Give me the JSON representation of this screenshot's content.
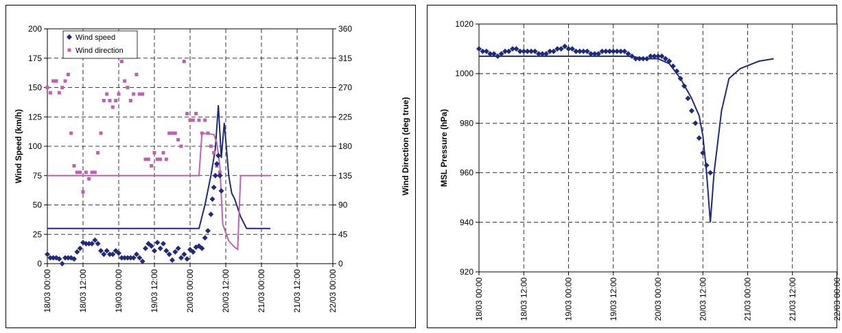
{
  "chart_data": [
    {
      "type": "line",
      "ylabel": "Wind Speed (km/h)",
      "y2label": "Wind Direction (deg true)",
      "ylim": [
        0,
        200
      ],
      "y2lim": [
        0,
        360
      ],
      "y_ticks": [
        "0",
        "25",
        "50",
        "75",
        "100",
        "125",
        "150",
        "175",
        "200"
      ],
      "y2_ticks": [
        "0",
        "45",
        "90",
        "135",
        "180",
        "225",
        "270",
        "315",
        "360"
      ],
      "x_ticks": [
        "18/03 00:00",
        "18/03 12:00",
        "19/03 00:00",
        "19/03 12:00",
        "20/03 00:00",
        "20/03 12:00",
        "21/03 00:00",
        "21/03 12:00",
        "22/03 00:00"
      ],
      "x_unit": "hours since 18/03 00:00",
      "xlim": [
        0,
        96
      ],
      "grid": true,
      "legend": {
        "placement": "top-left",
        "entries": [
          "Wind speed",
          "Wind direction"
        ]
      },
      "colors": {
        "speed": "#1f2a7a",
        "direction": "#c060b0"
      },
      "series": [
        {
          "name": "Wind speed",
          "axis": "left",
          "observed": [
            [
              0,
              8
            ],
            [
              1,
              5
            ],
            [
              2,
              5
            ],
            [
              3,
              5
            ],
            [
              4,
              4
            ],
            [
              5,
              0
            ],
            [
              6,
              5
            ],
            [
              7,
              5
            ],
            [
              8,
              5
            ],
            [
              9,
              4
            ],
            [
              10,
              10
            ],
            [
              11,
              13
            ],
            [
              12,
              18
            ],
            [
              13,
              17
            ],
            [
              14,
              17
            ],
            [
              15,
              17
            ],
            [
              16,
              20
            ],
            [
              17,
              17
            ],
            [
              18,
              11
            ],
            [
              19,
              8
            ],
            [
              20,
              11
            ],
            [
              21,
              8
            ],
            [
              22,
              8
            ],
            [
              23,
              11
            ],
            [
              24,
              9
            ],
            [
              25,
              5
            ],
            [
              26,
              5
            ],
            [
              27,
              5
            ],
            [
              28,
              5
            ],
            [
              29,
              5
            ],
            [
              30,
              8
            ],
            [
              31,
              5
            ],
            [
              32,
              2
            ],
            [
              33,
              13
            ],
            [
              34,
              17
            ],
            [
              35,
              15
            ],
            [
              36,
              11
            ],
            [
              37,
              18
            ],
            [
              38,
              13
            ],
            [
              39,
              17
            ],
            [
              40,
              11
            ],
            [
              41,
              8
            ],
            [
              42,
              3
            ],
            [
              43,
              10
            ],
            [
              44,
              13
            ],
            [
              45,
              5
            ],
            [
              46,
              8
            ],
            [
              47,
              4
            ],
            [
              48,
              12
            ],
            [
              49,
              10
            ],
            [
              50,
              14
            ],
            [
              51,
              15
            ],
            [
              52,
              13
            ],
            [
              53,
              22
            ],
            [
              54,
              28
            ],
            [
              55,
              42
            ],
            [
              55.5,
              55
            ],
            [
              56,
              65
            ],
            [
              56.5,
              75
            ],
            [
              57,
              85
            ],
            [
              57.5,
              92
            ],
            [
              58,
              75
            ],
            [
              58.5,
              62
            ]
          ],
          "model": [
            [
              0,
              30
            ],
            [
              51,
              30
            ],
            [
              53,
              50
            ],
            [
              55,
              75
            ],
            [
              56.5,
              98
            ],
            [
              57.5,
              135
            ],
            [
              58.5,
              90
            ],
            [
              59.5,
              120
            ],
            [
              61,
              75
            ],
            [
              62,
              60
            ],
            [
              63,
              55
            ],
            [
              65,
              40
            ],
            [
              67,
              30
            ],
            [
              75,
              30
            ]
          ]
        },
        {
          "name": "Wind direction",
          "axis": "right",
          "observed": [
            [
              0,
              270
            ],
            [
              1,
              262
            ],
            [
              2,
              280
            ],
            [
              3,
              280
            ],
            [
              4,
              262
            ],
            [
              5,
              270
            ],
            [
              6,
              280
            ],
            [
              7,
              290
            ],
            [
              8,
              200
            ],
            [
              9,
              150
            ],
            [
              10,
              140
            ],
            [
              11,
              140
            ],
            [
              12,
              110
            ],
            [
              13,
              140
            ],
            [
              14,
              130
            ],
            [
              15,
              140
            ],
            [
              16,
              140
            ],
            [
              17,
              170
            ],
            [
              18,
              200
            ],
            [
              19,
              250
            ],
            [
              20,
              260
            ],
            [
              21,
              250
            ],
            [
              22,
              240
            ],
            [
              23,
              250
            ],
            [
              24,
              260
            ],
            [
              25,
              310
            ],
            [
              26,
              280
            ],
            [
              27,
              270
            ],
            [
              28,
              250
            ],
            [
              29,
              260
            ],
            [
              30,
              290
            ],
            [
              31,
              260
            ],
            [
              32,
              260
            ],
            [
              33,
              160
            ],
            [
              34,
              160
            ],
            [
              35,
              150
            ],
            [
              36,
              170
            ],
            [
              37,
              160
            ],
            [
              38,
              160
            ],
            [
              39,
              170
            ],
            [
              40,
              160
            ],
            [
              41,
              200
            ],
            [
              42,
              200
            ],
            [
              43,
              200
            ],
            [
              44,
              190
            ],
            [
              45,
              180
            ],
            [
              46,
              310
            ],
            [
              47,
              230
            ],
            [
              48,
              220
            ],
            [
              49,
              220
            ],
            [
              50,
              230
            ],
            [
              51,
              220
            ],
            [
              52,
              200
            ],
            [
              53,
              220
            ],
            [
              54,
              200
            ],
            [
              55,
              180
            ],
            [
              56,
              170
            ],
            [
              57,
              150
            ],
            [
              58,
              140
            ]
          ],
          "model": [
            [
              0,
              135
            ],
            [
              51,
              135
            ],
            [
              52,
              200
            ],
            [
              56,
              198
            ],
            [
              57,
              185
            ],
            [
              58,
              150
            ],
            [
              59,
              60
            ],
            [
              61,
              35
            ],
            [
              63,
              25
            ],
            [
              64,
              22
            ],
            [
              65,
              135
            ],
            [
              75,
              135
            ]
          ]
        }
      ]
    },
    {
      "type": "line",
      "ylabel": "MSL Pressure (hPa)",
      "ylim": [
        920,
        1020
      ],
      "y_ticks": [
        "920",
        "940",
        "960",
        "980",
        "1000",
        "1020"
      ],
      "x_ticks": [
        "18/03 00:00",
        "18/03 12:00",
        "19/03 00:00",
        "19/03 12:00",
        "20/03 00:00",
        "20/03 12:00",
        "21/03 00:00",
        "21/03 12:00",
        "22/03 00:00"
      ],
      "xlim": [
        0,
        96
      ],
      "grid": true,
      "colors": {
        "pressure": "#1f2a7a"
      },
      "series": [
        {
          "name": "MSL Pressure",
          "observed": [
            [
              0,
              1010
            ],
            [
              1,
              1009
            ],
            [
              2,
              1009
            ],
            [
              3,
              1008
            ],
            [
              4,
              1008
            ],
            [
              5,
              1007
            ],
            [
              6,
              1008
            ],
            [
              7,
              1009
            ],
            [
              8,
              1009
            ],
            [
              9,
              1010
            ],
            [
              10,
              1010
            ],
            [
              11,
              1009
            ],
            [
              12,
              1009
            ],
            [
              13,
              1009
            ],
            [
              14,
              1009
            ],
            [
              15,
              1009
            ],
            [
              16,
              1008
            ],
            [
              17,
              1008
            ],
            [
              18,
              1008
            ],
            [
              19,
              1009
            ],
            [
              20,
              1009
            ],
            [
              21,
              1010
            ],
            [
              22,
              1010
            ],
            [
              23,
              1011
            ],
            [
              24,
              1010
            ],
            [
              25,
              1010
            ],
            [
              26,
              1009
            ],
            [
              27,
              1009
            ],
            [
              28,
              1009
            ],
            [
              29,
              1009
            ],
            [
              30,
              1008
            ],
            [
              31,
              1008
            ],
            [
              32,
              1008
            ],
            [
              33,
              1009
            ],
            [
              34,
              1009
            ],
            [
              35,
              1009
            ],
            [
              36,
              1009
            ],
            [
              37,
              1009
            ],
            [
              38,
              1009
            ],
            [
              39,
              1009
            ],
            [
              40,
              1008
            ],
            [
              41,
              1007
            ],
            [
              42,
              1006
            ],
            [
              43,
              1006
            ],
            [
              44,
              1006
            ],
            [
              45,
              1006
            ],
            [
              46,
              1007
            ],
            [
              47,
              1007
            ],
            [
              48,
              1007
            ],
            [
              49,
              1007
            ],
            [
              50,
              1006
            ],
            [
              51,
              1005
            ],
            [
              52,
              1003
            ],
            [
              53,
              1001
            ],
            [
              54,
              998
            ],
            [
              55,
              995
            ],
            [
              56,
              990
            ],
            [
              57,
              985
            ],
            [
              58,
              980
            ],
            [
              59,
              974
            ],
            [
              60,
              968
            ],
            [
              61,
              963
            ],
            [
              62,
              960
            ]
          ],
          "model": [
            [
              0,
              1007
            ],
            [
              20,
              1007
            ],
            [
              30,
              1007
            ],
            [
              40,
              1007
            ],
            [
              45,
              1006
            ],
            [
              48,
              1006
            ],
            [
              51,
              1004
            ],
            [
              54,
              998
            ],
            [
              57,
              990
            ],
            [
              59,
              983
            ],
            [
              60,
              975
            ],
            [
              61,
              960
            ],
            [
              62,
              940
            ],
            [
              63,
              960
            ],
            [
              65,
              985
            ],
            [
              67,
              998
            ],
            [
              70,
              1002
            ],
            [
              75,
              1005
            ],
            [
              79,
              1006
            ]
          ]
        }
      ]
    }
  ]
}
